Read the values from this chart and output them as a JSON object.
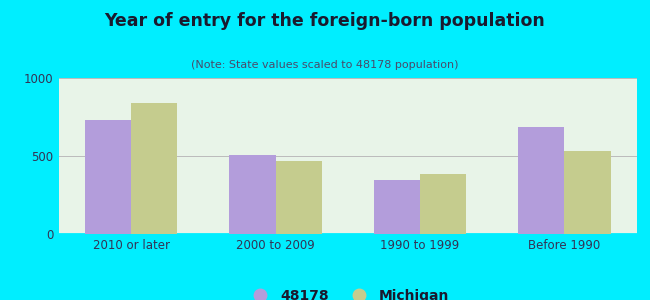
{
  "title": "Year of entry for the foreign-born population",
  "subtitle": "(Note: State values scaled to 48178 population)",
  "categories": [
    "2010 or later",
    "2000 to 2009",
    "1990 to 1999",
    "Before 1990"
  ],
  "values_48178": [
    730,
    505,
    345,
    685
  ],
  "values_michigan": [
    840,
    470,
    385,
    535
  ],
  "bar_color_48178": "#b39ddb",
  "bar_color_michigan": "#c5cc8e",
  "background_outer": "#00eeff",
  "background_inner": "#e8f5e8",
  "ylim": [
    0,
    1000
  ],
  "yticks": [
    0,
    500,
    1000
  ],
  "legend_labels": [
    "48178",
    "Michigan"
  ],
  "bar_width": 0.32,
  "figsize": [
    6.5,
    3.0
  ],
  "dpi": 100,
  "title_color": "#1a1a2e",
  "subtitle_color": "#4a4a6a",
  "tick_color": "#333355"
}
